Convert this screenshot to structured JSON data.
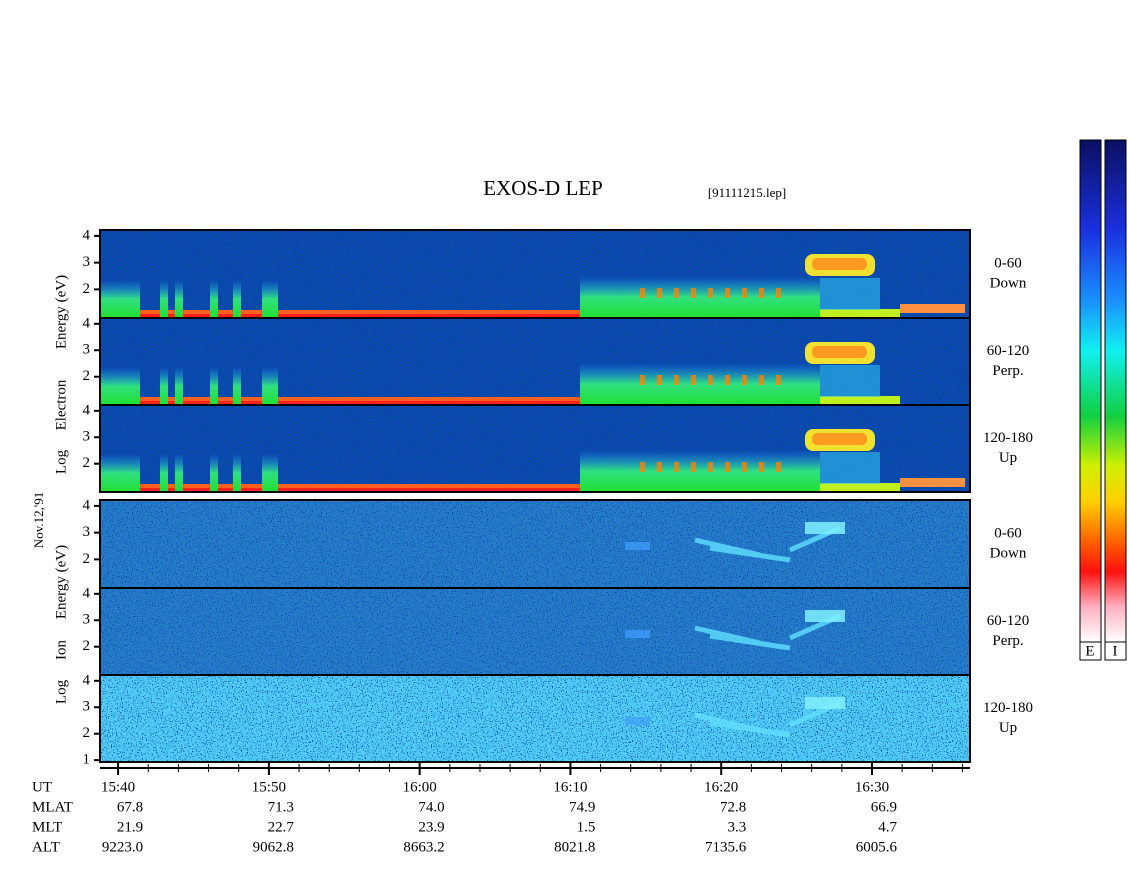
{
  "chart_data": {
    "type": "spectrogram",
    "title": "EXOS-D LEP",
    "file": "[91111215.lep]",
    "date": "Nov.12,'91",
    "electron_axis_label": [
      "Log",
      "Electron",
      "Energy (eV)"
    ],
    "ion_axis_label": [
      "Log",
      "Ion",
      "Energy (eV)"
    ],
    "ylim": [
      0.93,
      4.22
    ],
    "xlim": [
      938.8,
      996.5
    ],
    "xticks": [
      {
        "value": 940,
        "label": "15:40"
      },
      {
        "value": 950,
        "label": "15:50"
      },
      {
        "value": 960,
        "label": "16:00"
      },
      {
        "value": 970,
        "label": "16:10"
      },
      {
        "value": 980,
        "label": "16:20"
      },
      {
        "value": 990,
        "label": "16:30"
      }
    ],
    "panels": [
      {
        "species": "electron",
        "angle": "0-60",
        "direction": "Down",
        "yticks": [
          2,
          3,
          4
        ]
      },
      {
        "species": "electron",
        "angle": "60-120",
        "direction": "Perp.",
        "yticks": [
          2,
          3,
          4
        ]
      },
      {
        "species": "electron",
        "angle": "120-180",
        "direction": "Up",
        "yticks": [
          2,
          3,
          4
        ]
      },
      {
        "species": "ion",
        "angle": "0-60",
        "direction": "Down",
        "yticks": [
          2,
          3,
          4
        ]
      },
      {
        "species": "ion",
        "angle": "60-120",
        "direction": "Perp.",
        "yticks": [
          2,
          3,
          4
        ]
      },
      {
        "species": "ion",
        "angle": "120-180",
        "direction": "Up",
        "yticks": [
          1,
          2,
          3,
          4
        ]
      }
    ],
    "footer": {
      "x_label": "UT",
      "rows": [
        {
          "label": "MLAT",
          "values": [
            "67.8",
            "71.3",
            "74.0",
            "74.9",
            "72.8",
            "66.9"
          ]
        },
        {
          "label": "MLT",
          "values": [
            "21.9",
            "22.7",
            "23.9",
            "1.5",
            "3.3",
            "4.7"
          ]
        },
        {
          "label": "ALT",
          "values": [
            "9223.0",
            "9062.8",
            "8663.2",
            "8021.8",
            "7135.6",
            "6005.6"
          ]
        }
      ]
    },
    "colorbar_labels": [
      "E",
      "I"
    ]
  }
}
